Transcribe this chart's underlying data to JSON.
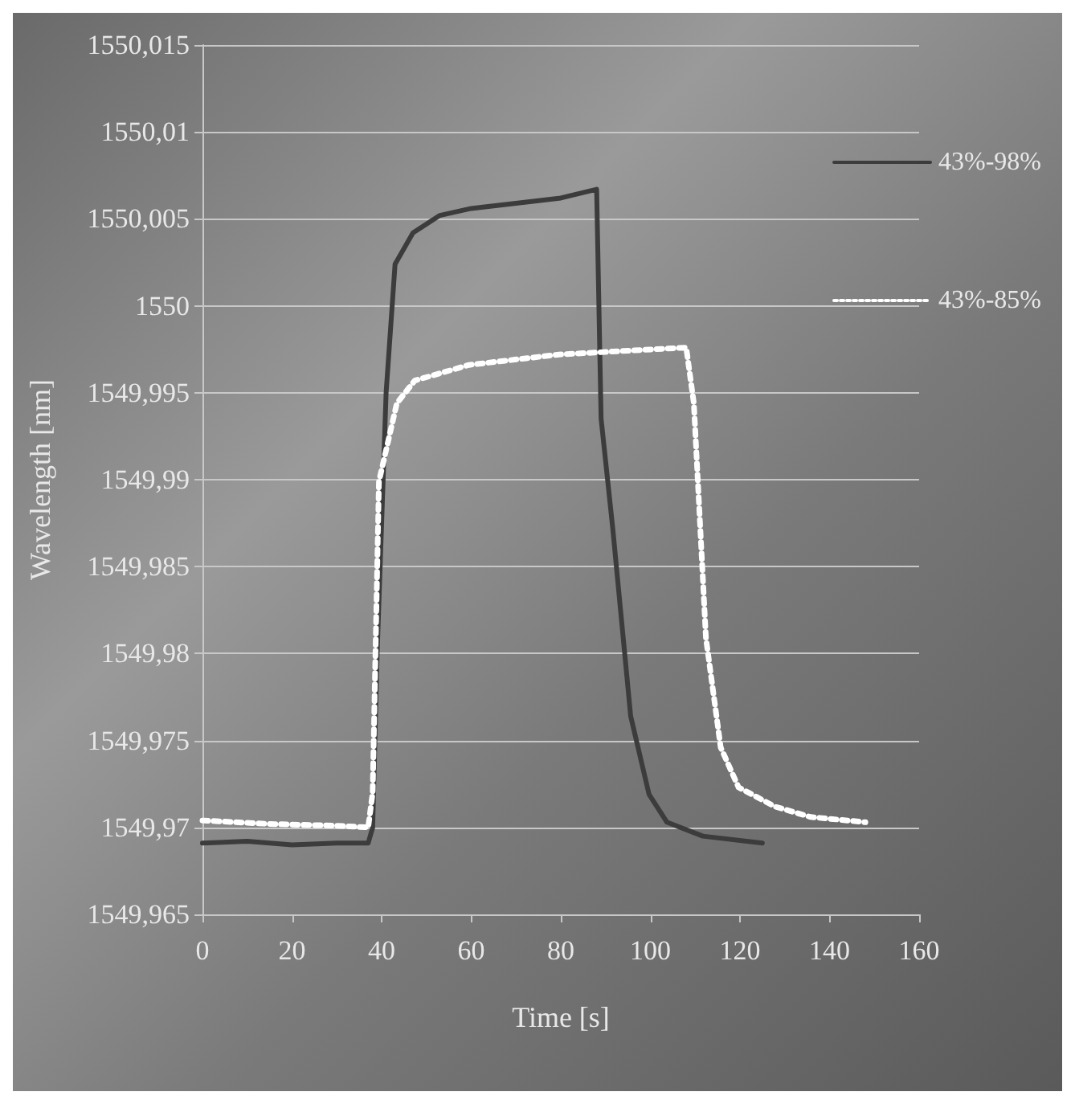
{
  "chart_data": {
    "type": "line",
    "xlabel": "Time [s]",
    "ylabel": "Wavelength [nm]",
    "xlim": [
      0,
      160
    ],
    "xticks": [
      0,
      20,
      40,
      60,
      80,
      100,
      120,
      140,
      160
    ],
    "ylim": [
      1549.965,
      1550.015
    ],
    "yticks": [
      {
        "value": 1549.965,
        "label": "1549,965"
      },
      {
        "value": 1549.97,
        "label": "1549,97"
      },
      {
        "value": 1549.975,
        "label": "1549,975"
      },
      {
        "value": 1549.98,
        "label": "1549,98"
      },
      {
        "value": 1549.985,
        "label": "1549,985"
      },
      {
        "value": 1549.99,
        "label": "1549,99"
      },
      {
        "value": 1549.995,
        "label": "1549,995"
      },
      {
        "value": 1550,
        "label": "1550"
      },
      {
        "value": 1550.005,
        "label": "1550,005"
      },
      {
        "value": 1550.01,
        "label": "1550,01"
      },
      {
        "value": 1550.015,
        "label": "1550,015"
      }
    ],
    "grid": "y",
    "legend": "right",
    "marker": "none",
    "series": [
      {
        "name": "43%-98%",
        "color": "#3c3c3c",
        "line_style": "solid",
        "x": [
          0,
          10,
          20,
          30,
          37,
          38,
          39,
          41,
          43,
          47,
          53,
          60,
          70,
          80,
          88,
          89,
          91.6,
          95.6,
          99.7,
          103.7,
          111.7,
          125
        ],
        "values": [
          1549.9691,
          1549.9692,
          1549.969,
          1549.9691,
          1549.9691,
          1549.97,
          1549.98,
          1549.995,
          1550.0024,
          1550.0042,
          1550.0052,
          1550.0056,
          1550.0059,
          1550.0062,
          1550.0067,
          1549.9935,
          1549.9872,
          1549.9764,
          1549.9719,
          1549.9703,
          1549.9695,
          1549.9691
        ]
      },
      {
        "name": "43%-85%",
        "color": "#ffffff",
        "line_style": "dotted",
        "x": [
          0,
          15,
          30,
          37,
          38,
          39.4,
          43.4,
          47.4,
          59.5,
          79.6,
          108,
          109.7,
          112.4,
          115.7,
          119.7,
          127.8,
          135.8,
          148
        ],
        "values": [
          1549.9704,
          1549.9702,
          1549.9701,
          1549.97,
          1549.972,
          1549.9899,
          1549.9944,
          1549.9957,
          1549.9966,
          1549.9972,
          1549.9976,
          1549.9944,
          1549.9809,
          1549.9746,
          1549.9723,
          1549.9712,
          1549.9706,
          1549.9703
        ]
      }
    ]
  }
}
